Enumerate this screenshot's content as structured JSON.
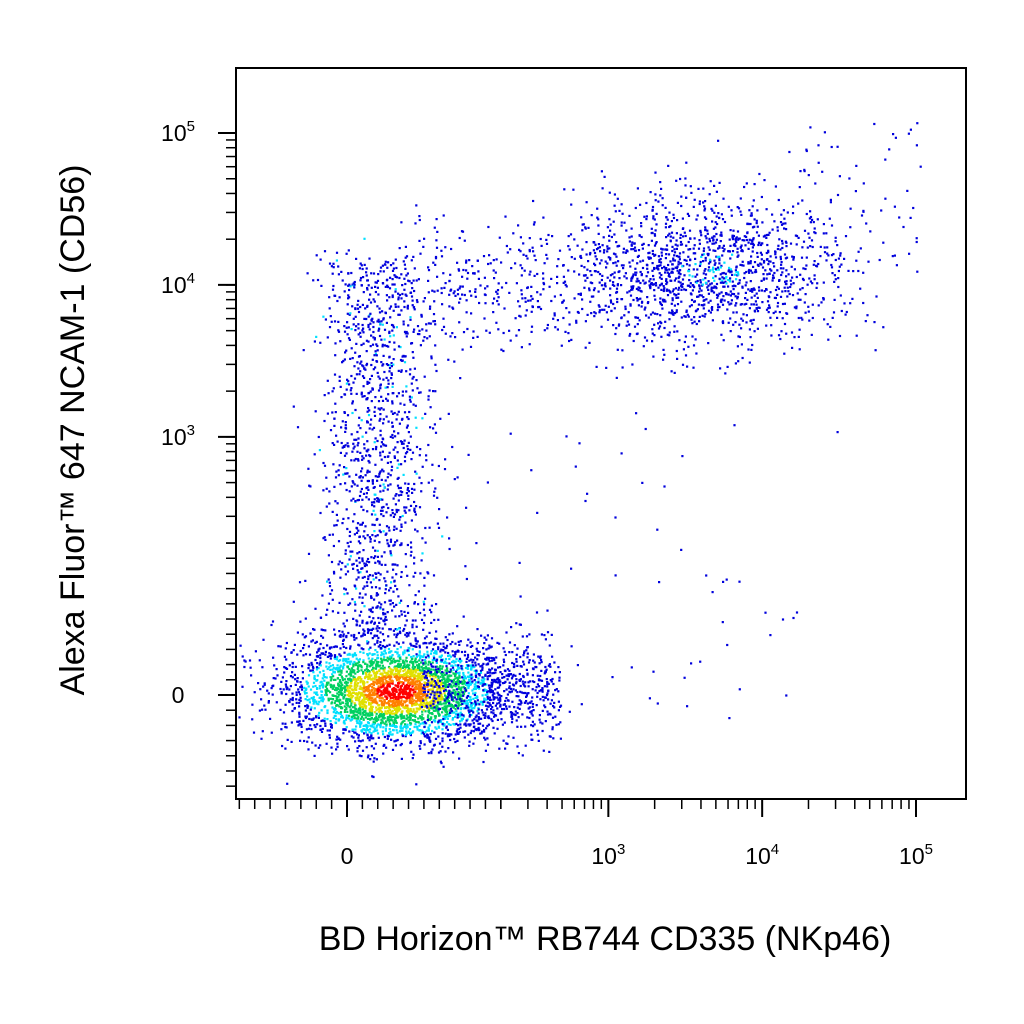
{
  "chart_data": {
    "type": "scatter",
    "title": "",
    "xlabel": "BD Horizon™ RB744 CD335 (NKp46)",
    "ylabel": "Alexa Fluor™ 647 NCAM-1 (CD56)",
    "x_scale": "biexponential",
    "y_scale": "biexponential",
    "x_ticks": [
      {
        "value": 0,
        "base": "0",
        "exp": ""
      },
      {
        "value": 1000,
        "base": "10",
        "exp": "3"
      },
      {
        "value": 10000,
        "base": "10",
        "exp": "4"
      },
      {
        "value": 100000,
        "base": "10",
        "exp": "5"
      }
    ],
    "y_ticks": [
      {
        "value": 0,
        "base": "0",
        "exp": ""
      },
      {
        "value": 1000,
        "base": "10",
        "exp": "3"
      },
      {
        "value": 10000,
        "base": "10",
        "exp": "4"
      },
      {
        "value": 100000,
        "base": "10",
        "exp": "5"
      }
    ],
    "color_scale": [
      "#0000dd",
      "#00e0ff",
      "#00d060",
      "#e0e000",
      "#ff8000",
      "#ff0000"
    ],
    "populations": [
      {
        "name": "",
        "x_center": 30,
        "y_center": 0,
        "count": 3400,
        "density": "high"
      },
      {
        "name": "",
        "x_center": 50,
        "y_center": 3500,
        "count": 1300,
        "density": "medium"
      },
      {
        "name": "",
        "x_center": 5500,
        "y_center": 15000,
        "count": 1300,
        "density": "medium"
      },
      {
        "name": "",
        "x_center": 400,
        "y_center": 15000,
        "count": 500,
        "density": "low"
      }
    ]
  }
}
